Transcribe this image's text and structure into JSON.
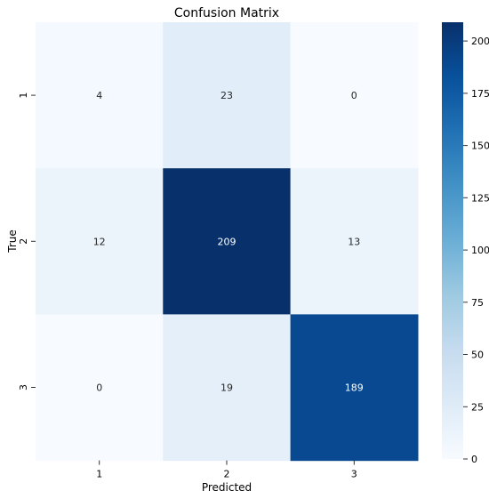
{
  "chart_data": {
    "type": "heatmap",
    "title": "Confusion Matrix",
    "xlabel": "Predicted",
    "ylabel": "True",
    "x_categories": [
      "1",
      "2",
      "3"
    ],
    "y_categories": [
      "1",
      "2",
      "3"
    ],
    "values": [
      [
        4,
        23,
        0
      ],
      [
        12,
        209,
        13
      ],
      [
        0,
        19,
        189
      ]
    ],
    "colormap": "Blues",
    "colorbar": {
      "range": [
        0,
        209
      ],
      "ticks": [
        0,
        25,
        50,
        75,
        100,
        125,
        150,
        175,
        200
      ]
    }
  }
}
